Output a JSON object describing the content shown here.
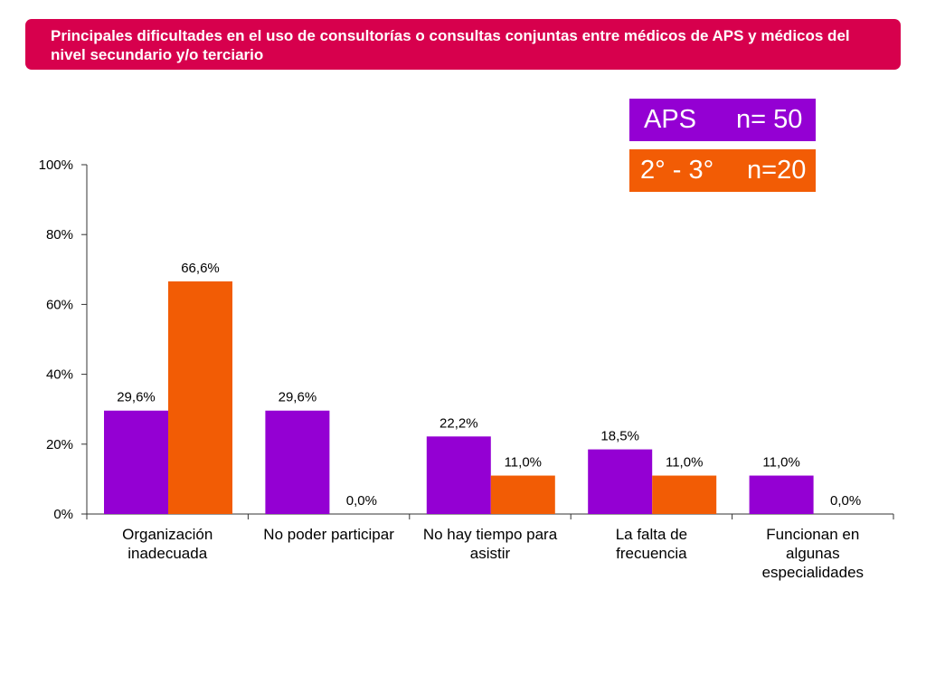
{
  "header": {
    "title": "Principales dificultades en el uso de consultorías o consultas conjuntas entre médicos de APS y médicos del nivel secundario y/o terciario"
  },
  "legend": {
    "aps": {
      "label": "APS",
      "n": "n= 50",
      "color": "#9400d3"
    },
    "secondary": {
      "label": "2° - 3°",
      "n": "n=20",
      "color": "#f25c05"
    }
  },
  "colors": {
    "banner": "#d7004d",
    "axis": "#333333"
  },
  "chart_data": {
    "type": "bar",
    "title": "",
    "xlabel": "",
    "ylabel": "",
    "ylim": [
      0,
      100
    ],
    "yticks": [
      0,
      20,
      40,
      60,
      80,
      100
    ],
    "ytick_labels": [
      "0%",
      "20%",
      "40%",
      "60%",
      "80%",
      "100%"
    ],
    "categories": [
      [
        "Organización",
        "inadecuada"
      ],
      [
        "No poder participar"
      ],
      [
        "No hay tiempo para",
        "asistir"
      ],
      [
        "La falta de",
        "frecuencia"
      ],
      [
        "Funcionan en",
        "algunas",
        "especialidades"
      ]
    ],
    "series": [
      {
        "name": "APS",
        "color": "#9400d3",
        "values": [
          29.6,
          29.6,
          22.2,
          18.5,
          11.0
        ],
        "labels": [
          "29,6%",
          "29,6%",
          "22,2%",
          "18,5%",
          "11,0%"
        ]
      },
      {
        "name": "2° - 3°",
        "color": "#f25c05",
        "values": [
          66.6,
          0.0,
          11.0,
          11.0,
          0.0
        ],
        "labels": [
          "66,6%",
          "0,0%",
          "11,0%",
          "11,0%",
          "0,0%"
        ]
      }
    ]
  }
}
